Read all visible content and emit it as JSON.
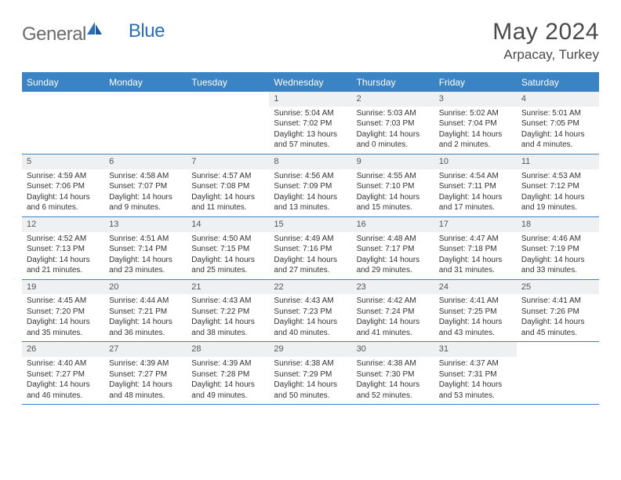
{
  "brand": {
    "general": "General",
    "blue": "Blue"
  },
  "header": {
    "title": "May 2024",
    "location": "Arpacay, Turkey"
  },
  "colors": {
    "accent": "#3a83c5",
    "weekday_bg": "#3a83c5",
    "weekday_text": "#ffffff",
    "daynum_bg": "#eef0f2",
    "border": "#3a83c5",
    "text": "#333333",
    "title_text": "#4a4a4a",
    "logo_gray": "#6b6b6b",
    "logo_blue": "#2a6fb5"
  },
  "weekdays": [
    "Sunday",
    "Monday",
    "Tuesday",
    "Wednesday",
    "Thursday",
    "Friday",
    "Saturday"
  ],
  "weeks": [
    [
      {
        "n": "",
        "sr": "",
        "ss": "",
        "dl": ""
      },
      {
        "n": "",
        "sr": "",
        "ss": "",
        "dl": ""
      },
      {
        "n": "",
        "sr": "",
        "ss": "",
        "dl": ""
      },
      {
        "n": "1",
        "sr": "Sunrise: 5:04 AM",
        "ss": "Sunset: 7:02 PM",
        "dl": "Daylight: 13 hours and 57 minutes."
      },
      {
        "n": "2",
        "sr": "Sunrise: 5:03 AM",
        "ss": "Sunset: 7:03 PM",
        "dl": "Daylight: 14 hours and 0 minutes."
      },
      {
        "n": "3",
        "sr": "Sunrise: 5:02 AM",
        "ss": "Sunset: 7:04 PM",
        "dl": "Daylight: 14 hours and 2 minutes."
      },
      {
        "n": "4",
        "sr": "Sunrise: 5:01 AM",
        "ss": "Sunset: 7:05 PM",
        "dl": "Daylight: 14 hours and 4 minutes."
      }
    ],
    [
      {
        "n": "5",
        "sr": "Sunrise: 4:59 AM",
        "ss": "Sunset: 7:06 PM",
        "dl": "Daylight: 14 hours and 6 minutes."
      },
      {
        "n": "6",
        "sr": "Sunrise: 4:58 AM",
        "ss": "Sunset: 7:07 PM",
        "dl": "Daylight: 14 hours and 9 minutes."
      },
      {
        "n": "7",
        "sr": "Sunrise: 4:57 AM",
        "ss": "Sunset: 7:08 PM",
        "dl": "Daylight: 14 hours and 11 minutes."
      },
      {
        "n": "8",
        "sr": "Sunrise: 4:56 AM",
        "ss": "Sunset: 7:09 PM",
        "dl": "Daylight: 14 hours and 13 minutes."
      },
      {
        "n": "9",
        "sr": "Sunrise: 4:55 AM",
        "ss": "Sunset: 7:10 PM",
        "dl": "Daylight: 14 hours and 15 minutes."
      },
      {
        "n": "10",
        "sr": "Sunrise: 4:54 AM",
        "ss": "Sunset: 7:11 PM",
        "dl": "Daylight: 14 hours and 17 minutes."
      },
      {
        "n": "11",
        "sr": "Sunrise: 4:53 AM",
        "ss": "Sunset: 7:12 PM",
        "dl": "Daylight: 14 hours and 19 minutes."
      }
    ],
    [
      {
        "n": "12",
        "sr": "Sunrise: 4:52 AM",
        "ss": "Sunset: 7:13 PM",
        "dl": "Daylight: 14 hours and 21 minutes."
      },
      {
        "n": "13",
        "sr": "Sunrise: 4:51 AM",
        "ss": "Sunset: 7:14 PM",
        "dl": "Daylight: 14 hours and 23 minutes."
      },
      {
        "n": "14",
        "sr": "Sunrise: 4:50 AM",
        "ss": "Sunset: 7:15 PM",
        "dl": "Daylight: 14 hours and 25 minutes."
      },
      {
        "n": "15",
        "sr": "Sunrise: 4:49 AM",
        "ss": "Sunset: 7:16 PM",
        "dl": "Daylight: 14 hours and 27 minutes."
      },
      {
        "n": "16",
        "sr": "Sunrise: 4:48 AM",
        "ss": "Sunset: 7:17 PM",
        "dl": "Daylight: 14 hours and 29 minutes."
      },
      {
        "n": "17",
        "sr": "Sunrise: 4:47 AM",
        "ss": "Sunset: 7:18 PM",
        "dl": "Daylight: 14 hours and 31 minutes."
      },
      {
        "n": "18",
        "sr": "Sunrise: 4:46 AM",
        "ss": "Sunset: 7:19 PM",
        "dl": "Daylight: 14 hours and 33 minutes."
      }
    ],
    [
      {
        "n": "19",
        "sr": "Sunrise: 4:45 AM",
        "ss": "Sunset: 7:20 PM",
        "dl": "Daylight: 14 hours and 35 minutes."
      },
      {
        "n": "20",
        "sr": "Sunrise: 4:44 AM",
        "ss": "Sunset: 7:21 PM",
        "dl": "Daylight: 14 hours and 36 minutes."
      },
      {
        "n": "21",
        "sr": "Sunrise: 4:43 AM",
        "ss": "Sunset: 7:22 PM",
        "dl": "Daylight: 14 hours and 38 minutes."
      },
      {
        "n": "22",
        "sr": "Sunrise: 4:43 AM",
        "ss": "Sunset: 7:23 PM",
        "dl": "Daylight: 14 hours and 40 minutes."
      },
      {
        "n": "23",
        "sr": "Sunrise: 4:42 AM",
        "ss": "Sunset: 7:24 PM",
        "dl": "Daylight: 14 hours and 41 minutes."
      },
      {
        "n": "24",
        "sr": "Sunrise: 4:41 AM",
        "ss": "Sunset: 7:25 PM",
        "dl": "Daylight: 14 hours and 43 minutes."
      },
      {
        "n": "25",
        "sr": "Sunrise: 4:41 AM",
        "ss": "Sunset: 7:26 PM",
        "dl": "Daylight: 14 hours and 45 minutes."
      }
    ],
    [
      {
        "n": "26",
        "sr": "Sunrise: 4:40 AM",
        "ss": "Sunset: 7:27 PM",
        "dl": "Daylight: 14 hours and 46 minutes."
      },
      {
        "n": "27",
        "sr": "Sunrise: 4:39 AM",
        "ss": "Sunset: 7:27 PM",
        "dl": "Daylight: 14 hours and 48 minutes."
      },
      {
        "n": "28",
        "sr": "Sunrise: 4:39 AM",
        "ss": "Sunset: 7:28 PM",
        "dl": "Daylight: 14 hours and 49 minutes."
      },
      {
        "n": "29",
        "sr": "Sunrise: 4:38 AM",
        "ss": "Sunset: 7:29 PM",
        "dl": "Daylight: 14 hours and 50 minutes."
      },
      {
        "n": "30",
        "sr": "Sunrise: 4:38 AM",
        "ss": "Sunset: 7:30 PM",
        "dl": "Daylight: 14 hours and 52 minutes."
      },
      {
        "n": "31",
        "sr": "Sunrise: 4:37 AM",
        "ss": "Sunset: 7:31 PM",
        "dl": "Daylight: 14 hours and 53 minutes."
      },
      {
        "n": "",
        "sr": "",
        "ss": "",
        "dl": ""
      }
    ]
  ]
}
